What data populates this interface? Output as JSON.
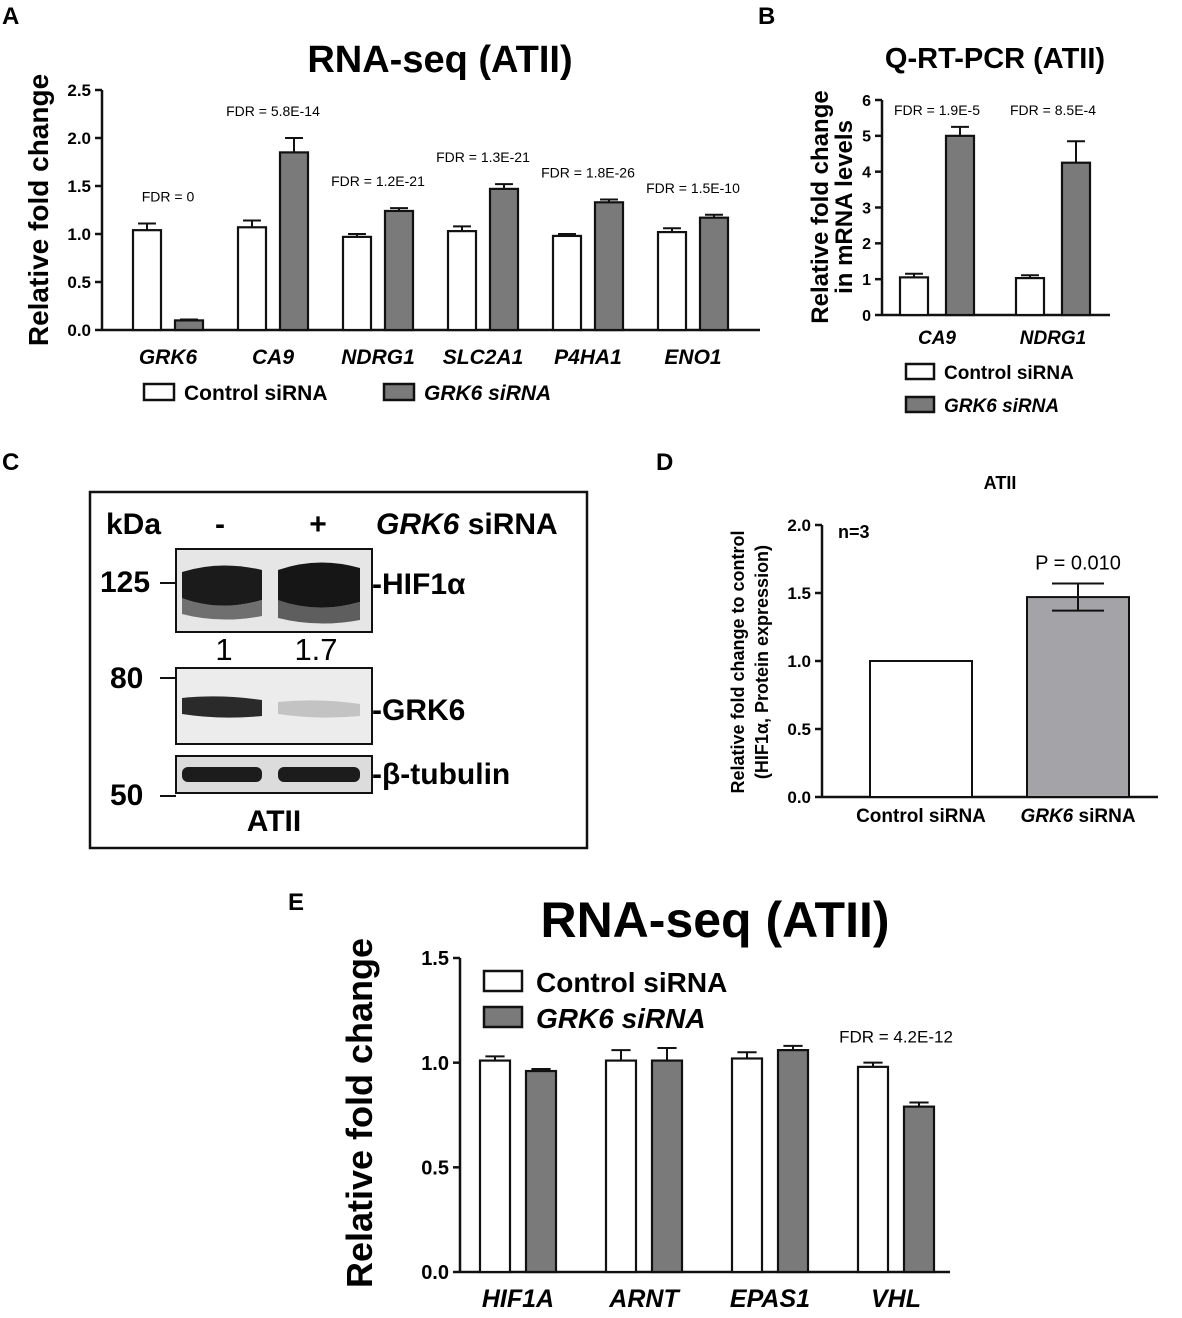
{
  "panels": {
    "A": {
      "letter": "A",
      "chart_data": {
        "type": "bar",
        "title": "RNA-seq (ATII)",
        "xlabel": "",
        "ylabel": "Relative fold change",
        "ylim": [
          0,
          2.5
        ],
        "yticks": [
          "0.0",
          "0.5",
          "1.0",
          "1.5",
          "2.0",
          "2.5"
        ],
        "categories": [
          "GRK6",
          "CA9",
          "NDRG1",
          "SLC2A1",
          "P4HA1",
          "ENO1"
        ],
        "series": [
          {
            "name": "Control siRNA",
            "color": "#ffffff",
            "values": [
              1.04,
              1.07,
              0.97,
              1.03,
              0.98,
              1.02
            ],
            "errors": [
              0.07,
              0.07,
              0.03,
              0.05,
              0.02,
              0.04
            ]
          },
          {
            "name": "GRK6 siRNA",
            "color": "#7a7a7a",
            "values": [
              0.1,
              1.85,
              1.24,
              1.47,
              1.33,
              1.17
            ],
            "errors": [
              0.01,
              0.15,
              0.03,
              0.05,
              0.03,
              0.03
            ]
          }
        ],
        "annotations": [
          "FDR = 0",
          "FDR = 5.8E-14",
          "FDR = 1.2E-21",
          "FDR = 1.3E-21",
          "FDR = 1.8E-26",
          "FDR = 1.5E-10"
        ],
        "legend": [
          "Control siRNA",
          "GRK6 siRNA"
        ],
        "legend_placement": "bottom"
      }
    },
    "B": {
      "letter": "B",
      "chart_data": {
        "type": "bar",
        "title": "Q-RT-PCR (ATII)",
        "xlabel": "",
        "ylabel": "Relative fold change in mRNA levels",
        "ylabel_lines": [
          "Relative fold change",
          "in mRNA levels"
        ],
        "ylim": [
          0,
          6
        ],
        "yticks": [
          "0",
          "1",
          "2",
          "3",
          "4",
          "5",
          "6"
        ],
        "categories": [
          "CA9",
          "NDRG1"
        ],
        "series": [
          {
            "name": "Control siRNA",
            "color": "#ffffff",
            "values": [
              1.05,
              1.03
            ],
            "errors": [
              0.1,
              0.08
            ]
          },
          {
            "name": "GRK6 siRNA",
            "color": "#7a7a7a",
            "values": [
              5.0,
              4.25
            ],
            "errors": [
              0.25,
              0.6
            ]
          }
        ],
        "annotations": [
          "FDR = 1.9E-5",
          "FDR = 8.5E-4"
        ],
        "legend": [
          "Control siRNA",
          "GRK6 siRNA"
        ],
        "legend_placement": "bottom"
      }
    },
    "C": {
      "letter": "C",
      "blot": {
        "header_kda": "kDa",
        "lane_minus": "-",
        "lane_plus": "+",
        "header_sirna_italic": "GRK6",
        "header_sirna_rest": " siRNA",
        "markers": [
          "125",
          "80",
          "50"
        ],
        "bands": [
          "-HIF1α",
          "-GRK6",
          "-β-tubulin"
        ],
        "quant": [
          "1",
          "1.7"
        ],
        "footer": "ATII"
      }
    },
    "D": {
      "letter": "D",
      "chart_data": {
        "type": "bar",
        "title": "ATII",
        "xlabel": "",
        "ylabel": "Relative fold change to control (HIF1α, Protein expression)",
        "ylabel_lines": [
          "Relative fold change to control",
          "(HIF1α, Protein expression)"
        ],
        "ylim": [
          0,
          2.0
        ],
        "yticks": [
          "0.0",
          "0.5",
          "1.0",
          "1.5",
          "2.0"
        ],
        "categories": [
          "Control siRNA",
          "GRK6 siRNA"
        ],
        "values": [
          1.0,
          1.47
        ],
        "errors": [
          0,
          0.1
        ],
        "colors": [
          "#ffffff",
          "#a3a3a8"
        ],
        "annotations": [
          "n=3",
          "P = 0.010"
        ]
      }
    },
    "E": {
      "letter": "E",
      "chart_data": {
        "type": "bar",
        "title": "RNA-seq (ATII)",
        "xlabel": "",
        "ylabel": "Relative fold change",
        "ylim": [
          0,
          1.5
        ],
        "yticks": [
          "0.0",
          "0.5",
          "1.0",
          "1.5"
        ],
        "categories": [
          "HIF1A",
          "ARNT",
          "EPAS1",
          "VHL"
        ],
        "series": [
          {
            "name": "Control siRNA",
            "color": "#ffffff",
            "values": [
              1.01,
              1.01,
              1.02,
              0.98
            ],
            "errors": [
              0.02,
              0.05,
              0.03,
              0.02
            ]
          },
          {
            "name": "GRK6 siRNA",
            "color": "#7a7a7a",
            "values": [
              0.96,
              1.01,
              1.06,
              0.79
            ],
            "errors": [
              0.01,
              0.06,
              0.02,
              0.02
            ]
          }
        ],
        "annotations": [
          "FDR = 4.2E-12"
        ],
        "legend": [
          "Control siRNA",
          "GRK6 siRNA"
        ],
        "legend_placement": "top-left"
      }
    }
  }
}
